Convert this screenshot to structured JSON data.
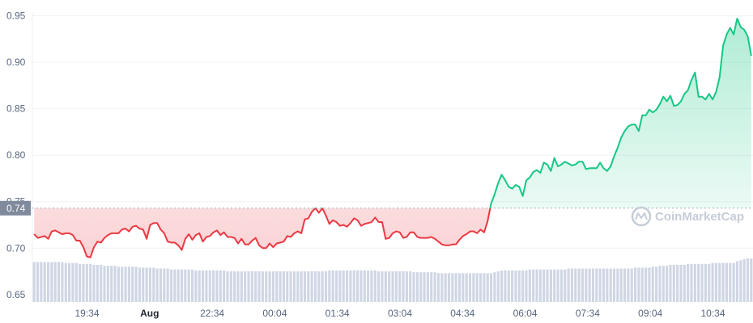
{
  "chart_data": {
    "type": "line",
    "y_ticks": [
      "0.95",
      "0.90",
      "0.85",
      "0.80",
      "0.75",
      "0.70",
      "0.65"
    ],
    "y_tick_values": [
      0.95,
      0.9,
      0.85,
      0.8,
      0.75,
      0.7,
      0.65
    ],
    "ylim": [
      0.642,
      0.954
    ],
    "x_ticks": [
      {
        "label": "19:34",
        "bold": false
      },
      {
        "label": "Aug",
        "bold": true
      },
      {
        "label": "22:34",
        "bold": false
      },
      {
        "label": "00:04",
        "bold": false
      },
      {
        "label": "01:34",
        "bold": false
      },
      {
        "label": "03:04",
        "bold": false
      },
      {
        "label": "04:34",
        "bold": false
      },
      {
        "label": "06:04",
        "bold": false
      },
      {
        "label": "07:34",
        "bold": false
      },
      {
        "label": "09:04",
        "bold": false
      },
      {
        "label": "10:34",
        "bold": false
      }
    ],
    "reference_price": 0.743,
    "reference_label": "0.74",
    "up_color": "#16c784",
    "down_color": "#ea3943",
    "volume_color": "#cfd6e4",
    "watermark": "CoinMarketCap",
    "price": [
      0.715,
      0.711,
      0.712,
      0.713,
      0.71,
      0.718,
      0.719,
      0.717,
      0.715,
      0.716,
      0.716,
      0.714,
      0.708,
      0.708,
      0.701,
      0.691,
      0.69,
      0.701,
      0.707,
      0.706,
      0.711,
      0.714,
      0.716,
      0.716,
      0.716,
      0.72,
      0.721,
      0.718,
      0.723,
      0.724,
      0.721,
      0.72,
      0.71,
      0.725,
      0.727,
      0.727,
      0.72,
      0.716,
      0.707,
      0.706,
      0.706,
      0.703,
      0.698,
      0.71,
      0.715,
      0.709,
      0.714,
      0.716,
      0.707,
      0.712,
      0.713,
      0.717,
      0.719,
      0.714,
      0.717,
      0.712,
      0.712,
      0.711,
      0.705,
      0.71,
      0.704,
      0.704,
      0.708,
      0.711,
      0.703,
      0.7,
      0.7,
      0.705,
      0.701,
      0.705,
      0.706,
      0.707,
      0.713,
      0.712,
      0.716,
      0.718,
      0.716,
      0.731,
      0.732,
      0.739,
      0.743,
      0.738,
      0.743,
      0.735,
      0.726,
      0.73,
      0.728,
      0.724,
      0.725,
      0.723,
      0.727,
      0.732,
      0.73,
      0.724,
      0.726,
      0.727,
      0.728,
      0.733,
      0.728,
      0.728,
      0.71,
      0.711,
      0.716,
      0.718,
      0.717,
      0.711,
      0.712,
      0.717,
      0.717,
      0.712,
      0.711,
      0.711,
      0.711,
      0.712,
      0.71,
      0.707,
      0.704,
      0.703,
      0.703,
      0.704,
      0.704,
      0.709,
      0.713,
      0.715,
      0.718,
      0.718,
      0.716,
      0.72,
      0.717,
      0.729,
      0.748,
      0.758,
      0.77,
      0.779,
      0.773,
      0.766,
      0.764,
      0.768,
      0.766,
      0.756,
      0.773,
      0.776,
      0.782,
      0.784,
      0.781,
      0.792,
      0.79,
      0.783,
      0.797,
      0.788,
      0.79,
      0.793,
      0.791,
      0.789,
      0.79,
      0.793,
      0.793,
      0.785,
      0.786,
      0.786,
      0.786,
      0.792,
      0.786,
      0.783,
      0.788,
      0.799,
      0.808,
      0.819,
      0.826,
      0.831,
      0.833,
      0.833,
      0.826,
      0.843,
      0.843,
      0.849,
      0.846,
      0.849,
      0.855,
      0.863,
      0.858,
      0.864,
      0.853,
      0.854,
      0.858,
      0.866,
      0.87,
      0.881,
      0.889,
      0.863,
      0.863,
      0.86,
      0.866,
      0.86,
      0.868,
      0.884,
      0.918,
      0.93,
      0.937,
      0.93,
      0.947,
      0.938,
      0.935,
      0.928,
      0.907
    ],
    "volume": [
      0.685,
      0.685,
      0.685,
      0.685,
      0.685,
      0.685,
      0.685,
      0.685,
      0.685,
      0.684,
      0.684,
      0.684,
      0.684,
      0.683,
      0.683,
      0.683,
      0.683,
      0.682,
      0.682,
      0.682,
      0.681,
      0.681,
      0.681,
      0.681,
      0.68,
      0.68,
      0.68,
      0.68,
      0.68,
      0.68,
      0.679,
      0.679,
      0.679,
      0.679,
      0.679,
      0.678,
      0.678,
      0.678,
      0.678,
      0.677,
      0.677,
      0.677,
      0.677,
      0.677,
      0.677,
      0.677,
      0.676,
      0.676,
      0.676,
      0.676,
      0.676,
      0.676,
      0.676,
      0.676,
      0.676,
      0.675,
      0.675,
      0.675,
      0.675,
      0.675,
      0.675,
      0.675,
      0.675,
      0.675,
      0.675,
      0.675,
      0.675,
      0.675,
      0.675,
      0.675,
      0.675,
      0.675,
      0.675,
      0.675,
      0.675,
      0.675,
      0.675,
      0.675,
      0.675,
      0.675,
      0.675,
      0.675,
      0.675,
      0.675,
      0.676,
      0.676,
      0.676,
      0.676,
      0.676,
      0.676,
      0.676,
      0.676,
      0.676,
      0.676,
      0.676,
      0.676,
      0.676,
      0.676,
      0.675,
      0.675,
      0.675,
      0.675,
      0.675,
      0.675,
      0.675,
      0.675,
      0.675,
      0.675,
      0.674,
      0.674,
      0.674,
      0.674,
      0.674,
      0.674,
      0.674,
      0.673,
      0.673,
      0.673,
      0.673,
      0.673,
      0.673,
      0.673,
      0.673,
      0.673,
      0.673,
      0.673,
      0.673,
      0.673,
      0.673,
      0.673,
      0.673,
      0.674,
      0.675,
      0.676,
      0.676,
      0.676,
      0.676,
      0.676,
      0.676,
      0.676,
      0.676,
      0.677,
      0.677,
      0.677,
      0.677,
      0.677,
      0.677,
      0.677,
      0.677,
      0.677,
      0.677,
      0.677,
      0.678,
      0.678,
      0.678,
      0.678,
      0.678,
      0.678,
      0.678,
      0.678,
      0.678,
      0.678,
      0.678,
      0.678,
      0.678,
      0.678,
      0.678,
      0.678,
      0.678,
      0.678,
      0.678,
      0.679,
      0.679,
      0.679,
      0.679,
      0.679,
      0.68,
      0.68,
      0.681,
      0.681,
      0.681,
      0.682,
      0.682,
      0.682,
      0.682,
      0.682,
      0.683,
      0.683,
      0.683,
      0.683,
      0.683,
      0.683,
      0.683,
      0.684,
      0.684,
      0.684,
      0.684,
      0.684,
      0.684,
      0.684,
      0.686,
      0.687,
      0.688,
      0.689,
      0.689,
      0.689,
      0.689,
      0.689,
      0.689,
      0.688
    ]
  }
}
